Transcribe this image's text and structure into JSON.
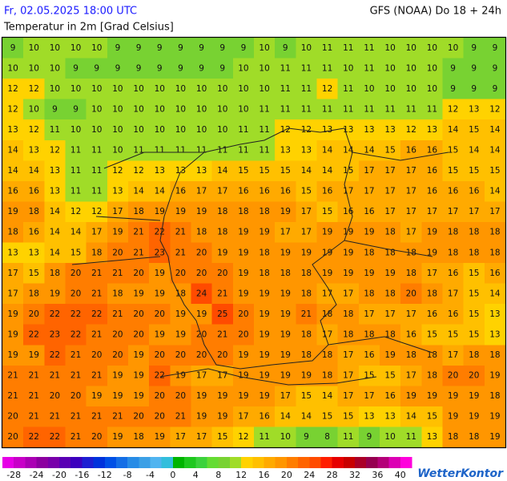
{
  "header": {
    "datetime": "Fr, 02.05.2025 18:00 UTC",
    "model": "GFS (NOAA) Do 18 + 24h",
    "title": "Temperatur in 2m [Grad Celsius]"
  },
  "grid": {
    "rows": [
      [
        9,
        10,
        10,
        10,
        10,
        9,
        9,
        9,
        9,
        9,
        9,
        9,
        10,
        9,
        10,
        11,
        11,
        11,
        10,
        10,
        10,
        10,
        9,
        9
      ],
      [
        10,
        10,
        10,
        9,
        9,
        9,
        9,
        9,
        9,
        9,
        9,
        10,
        10,
        11,
        11,
        11,
        10,
        11,
        10,
        10,
        10,
        9,
        9,
        9
      ],
      [
        12,
        12,
        10,
        10,
        10,
        10,
        10,
        10,
        10,
        10,
        10,
        10,
        10,
        11,
        11,
        12,
        11,
        10,
        10,
        10,
        10,
        9,
        9,
        9
      ],
      [
        12,
        10,
        9,
        9,
        10,
        10,
        10,
        10,
        10,
        10,
        10,
        10,
        11,
        11,
        11,
        11,
        11,
        11,
        11,
        11,
        11,
        12,
        13,
        12
      ],
      [
        13,
        12,
        11,
        10,
        10,
        10,
        10,
        10,
        10,
        10,
        10,
        11,
        11,
        12,
        12,
        13,
        13,
        13,
        13,
        12,
        13,
        14,
        15,
        14
      ],
      [
        14,
        13,
        12,
        11,
        11,
        10,
        11,
        11,
        11,
        11,
        11,
        11,
        11,
        13,
        13,
        14,
        14,
        14,
        15,
        16,
        16,
        15,
        14,
        14
      ],
      [
        14,
        14,
        13,
        11,
        11,
        12,
        12,
        13,
        13,
        13,
        14,
        15,
        15,
        15,
        14,
        14,
        15,
        17,
        17,
        17,
        16,
        15,
        15,
        15
      ],
      [
        16,
        16,
        13,
        11,
        11,
        13,
        14,
        14,
        16,
        17,
        17,
        16,
        16,
        16,
        15,
        16,
        17,
        17,
        17,
        17,
        16,
        16,
        16,
        14
      ],
      [
        19,
        18,
        14,
        12,
        12,
        17,
        18,
        19,
        19,
        19,
        18,
        18,
        18,
        19,
        17,
        15,
        16,
        16,
        17,
        17,
        17,
        17,
        17,
        17
      ],
      [
        18,
        16,
        14,
        14,
        17,
        19,
        21,
        22,
        21,
        18,
        18,
        19,
        19,
        17,
        17,
        19,
        19,
        19,
        18,
        17,
        19,
        18,
        18,
        18
      ],
      [
        13,
        13,
        14,
        15,
        18,
        20,
        21,
        23,
        21,
        20,
        19,
        19,
        18,
        19,
        19,
        19,
        19,
        18,
        18,
        18,
        19,
        18,
        18,
        18
      ],
      [
        17,
        15,
        18,
        20,
        21,
        21,
        20,
        19,
        20,
        20,
        20,
        19,
        18,
        18,
        18,
        19,
        19,
        19,
        19,
        18,
        17,
        16,
        15,
        16
      ],
      [
        17,
        18,
        19,
        20,
        21,
        18,
        19,
        19,
        18,
        24,
        21,
        19,
        19,
        19,
        18,
        17,
        17,
        18,
        18,
        20,
        18,
        17,
        15,
        14
      ],
      [
        19,
        20,
        22,
        22,
        22,
        21,
        20,
        20,
        19,
        19,
        25,
        20,
        19,
        19,
        21,
        18,
        18,
        17,
        17,
        17,
        16,
        16,
        15,
        13
      ],
      [
        19,
        22,
        23,
        22,
        21,
        20,
        20,
        19,
        19,
        20,
        21,
        20,
        19,
        19,
        18,
        17,
        18,
        18,
        18,
        16,
        15,
        15,
        15,
        13
      ],
      [
        19,
        19,
        22,
        21,
        20,
        20,
        19,
        20,
        20,
        20,
        20,
        19,
        19,
        19,
        18,
        18,
        17,
        16,
        19,
        18,
        18,
        17,
        18,
        18
      ],
      [
        21,
        21,
        21,
        21,
        21,
        19,
        19,
        22,
        19,
        17,
        17,
        19,
        19,
        19,
        19,
        18,
        17,
        15,
        15,
        17,
        18,
        20,
        20,
        19
      ],
      [
        21,
        21,
        20,
        20,
        19,
        19,
        19,
        20,
        20,
        19,
        19,
        19,
        19,
        17,
        15,
        14,
        17,
        17,
        16,
        19,
        19,
        19,
        19,
        18
      ],
      [
        20,
        21,
        21,
        21,
        21,
        21,
        20,
        20,
        21,
        19,
        19,
        17,
        16,
        14,
        14,
        15,
        15,
        13,
        13,
        14,
        15,
        19,
        19,
        19
      ],
      [
        20,
        22,
        22,
        21,
        20,
        19,
        18,
        19,
        17,
        17,
        15,
        12,
        11,
        10,
        9,
        8,
        11,
        9,
        10,
        11,
        13,
        18,
        18,
        19
      ]
    ]
  },
  "colorbar": {
    "bins": [
      -30,
      -28,
      -26,
      -24,
      -22,
      -20,
      -18,
      -16,
      -14,
      -12,
      -10,
      -8,
      -6,
      -4,
      -2,
      0,
      2,
      4,
      6,
      8,
      10,
      12,
      14,
      16,
      18,
      20,
      22,
      24,
      26,
      28,
      30,
      32,
      34,
      36,
      38,
      40,
      42
    ],
    "colors": [
      "#e600e6",
      "#c800c8",
      "#aa00b4",
      "#8c00a0",
      "#7800aa",
      "#5a00b4",
      "#3c00be",
      "#1e1ed2",
      "#0032dc",
      "#0050e6",
      "#146ee6",
      "#288ce6",
      "#3ca0e6",
      "#50b4f0",
      "#32bedc",
      "#00b400",
      "#1ec81e",
      "#3cd23c",
      "#64dc32",
      "#78d232",
      "#a0dc28",
      "#ffd200",
      "#ffc000",
      "#ffaa00",
      "#ff9600",
      "#ff7d00",
      "#ff6400",
      "#ff4b00",
      "#ff1e00",
      "#e60000",
      "#c80000",
      "#aa0028",
      "#960050",
      "#b40078",
      "#dc00b4",
      "#ff00dc"
    ],
    "ticks": [
      -28,
      -24,
      -20,
      -16,
      -12,
      -8,
      -4,
      0,
      4,
      8,
      12,
      16,
      20,
      24,
      28,
      32,
      36,
      40
    ]
  },
  "logo": "WetterKontor"
}
